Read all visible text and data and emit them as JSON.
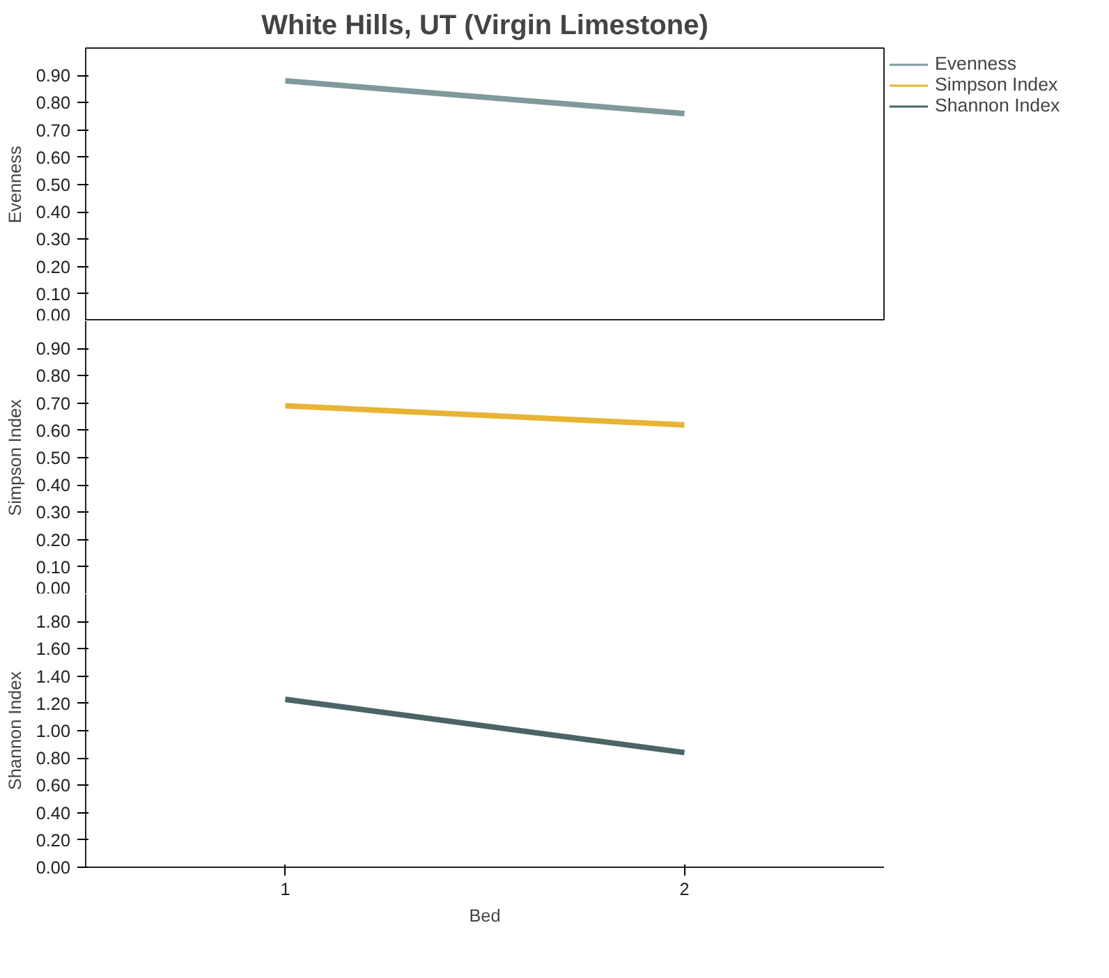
{
  "chart_data": [
    {
      "type": "line",
      "title": "White Hills, UT (Virgin Limestone)",
      "ylabel": "Evenness",
      "categories": [
        "1",
        "2"
      ],
      "legend": "top right",
      "tick_labels": "y",
      "series": [
        {
          "name": "Evenness",
          "color": "#7f9a9a",
          "values": [
            0.88,
            0.76
          ]
        }
      ],
      "ylim": [
        0,
        1
      ],
      "yticks": [
        {
          "value": 0,
          "label": "0.00"
        },
        {
          "value": 0.1,
          "label": "0.10"
        },
        {
          "value": 0.2,
          "label": "0.20"
        },
        {
          "value": 0.3,
          "label": "0.30"
        },
        {
          "value": 0.4,
          "label": "0.40"
        },
        {
          "value": 0.5,
          "label": "0.50"
        },
        {
          "value": 0.6,
          "label": "0.60"
        },
        {
          "value": 0.7,
          "label": "0.70"
        },
        {
          "value": 0.8,
          "label": "0.80"
        },
        {
          "value": 0.9,
          "label": "0.90"
        }
      ]
    },
    {
      "type": "line",
      "ylabel": "Simpson Index",
      "categories": [
        "1",
        "2"
      ],
      "legend": "top right",
      "tick_labels": "y",
      "series": [
        {
          "name": "Simpson Index",
          "color": "#e8b435",
          "values": [
            0.69,
            0.62
          ]
        }
      ],
      "ylim": [
        0,
        1
      ],
      "yticks": [
        {
          "value": 0,
          "label": "0.00"
        },
        {
          "value": 0.1,
          "label": "0.10"
        },
        {
          "value": 0.2,
          "label": "0.20"
        },
        {
          "value": 0.3,
          "label": "0.30"
        },
        {
          "value": 0.4,
          "label": "0.40"
        },
        {
          "value": 0.5,
          "label": "0.50"
        },
        {
          "value": 0.6,
          "label": "0.60"
        },
        {
          "value": 0.7,
          "label": "0.70"
        },
        {
          "value": 0.8,
          "label": "0.80"
        },
        {
          "value": 0.9,
          "label": "0.90"
        }
      ]
    },
    {
      "type": "line",
      "xlabel": "Bed",
      "ylabel": "Shannon Index",
      "categories": [
        "1",
        "2"
      ],
      "legend": "top right",
      "series": [
        {
          "name": "Shannon Index",
          "color": "#4b6466",
          "values": [
            1.23,
            0.84
          ]
        }
      ],
      "ylim": [
        0,
        2
      ],
      "yticks": [
        {
          "value": 0,
          "label": "0.00"
        },
        {
          "value": 0.2,
          "label": "0.20"
        },
        {
          "value": 0.4,
          "label": "0.40"
        },
        {
          "value": 0.6,
          "label": "0.60"
        },
        {
          "value": 0.8,
          "label": "0.80"
        },
        {
          "value": 1.0,
          "label": "1.00"
        },
        {
          "value": 1.2,
          "label": "1.20"
        },
        {
          "value": 1.4,
          "label": "1.40"
        },
        {
          "value": 1.6,
          "label": "1.60"
        },
        {
          "value": 1.8,
          "label": "1.80"
        }
      ]
    }
  ]
}
